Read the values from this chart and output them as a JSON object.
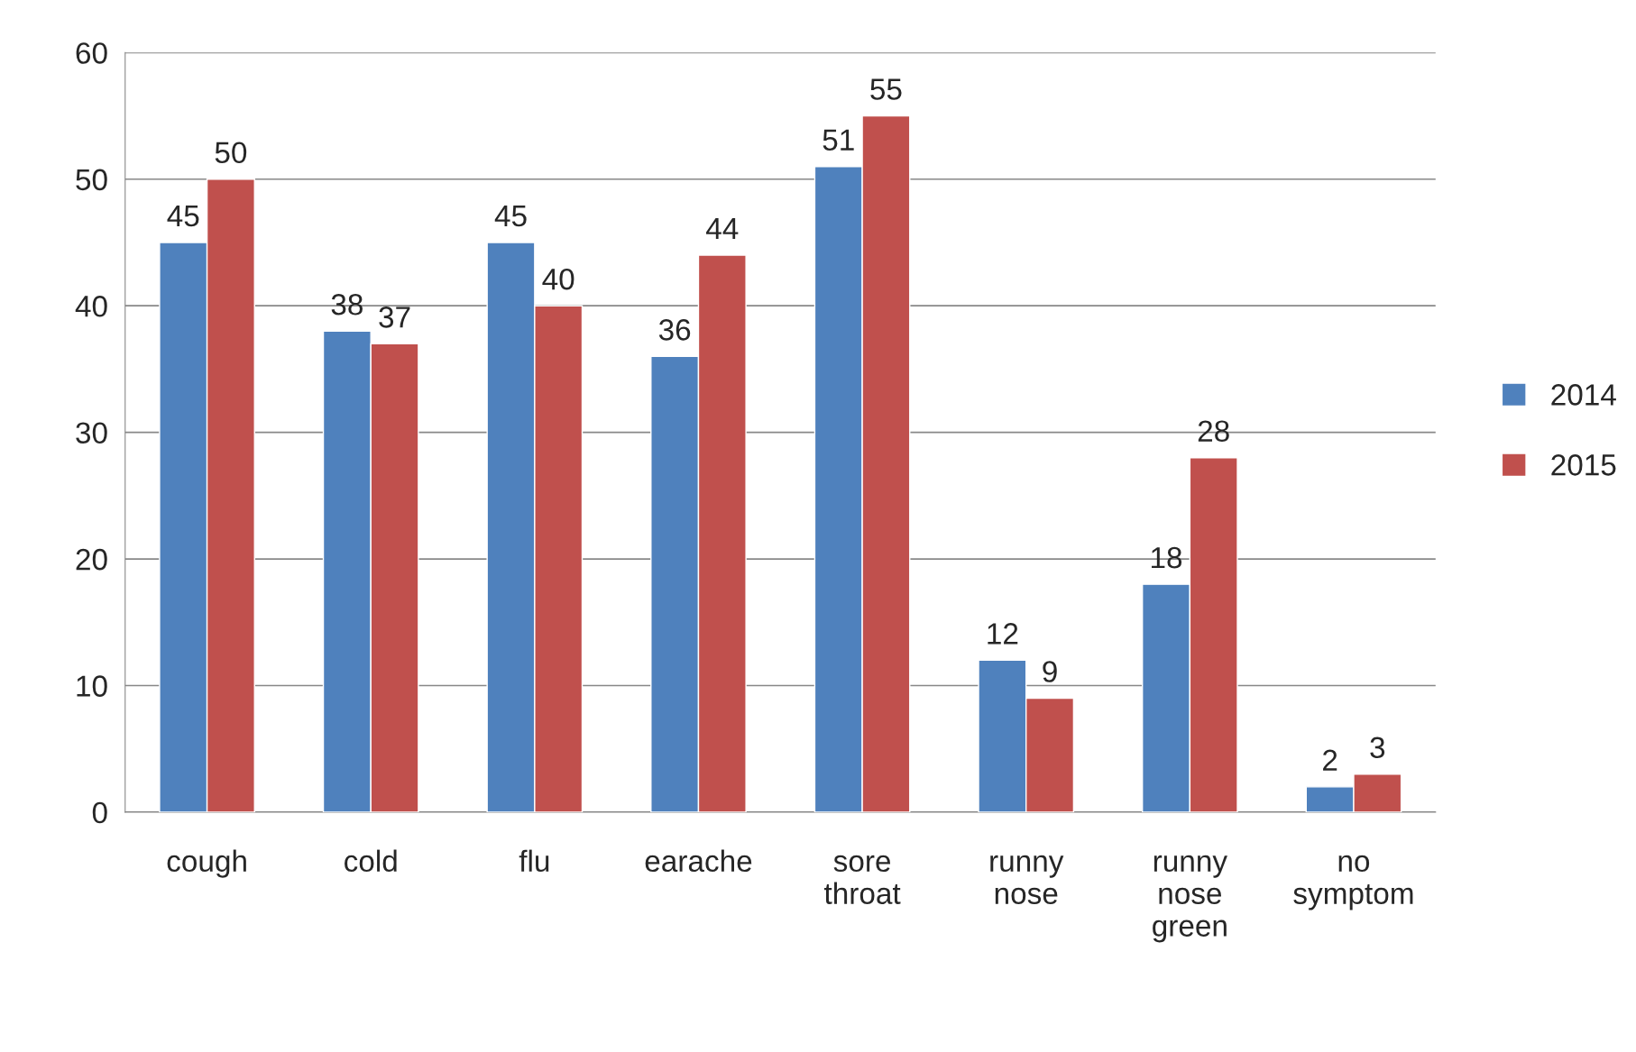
{
  "chart_data": {
    "type": "bar",
    "categories": [
      "cough",
      "cold",
      "flu",
      "earache",
      "sore\nthroat",
      "runny\nnose",
      "runny\nnose\ngreen",
      "no\nsymptom"
    ],
    "series": [
      {
        "name": "2014",
        "color": "#4f81bd",
        "values": [
          45,
          38,
          45,
          36,
          51,
          12,
          18,
          2
        ]
      },
      {
        "name": "2015",
        "color": "#c0504d",
        "values": [
          50,
          37,
          40,
          44,
          55,
          9,
          28,
          3
        ]
      }
    ],
    "ylim": [
      0,
      60
    ],
    "yticks": [
      0,
      10,
      20,
      30,
      40,
      50,
      60
    ],
    "grid": "y",
    "legend": "right",
    "data_labels": true
  }
}
